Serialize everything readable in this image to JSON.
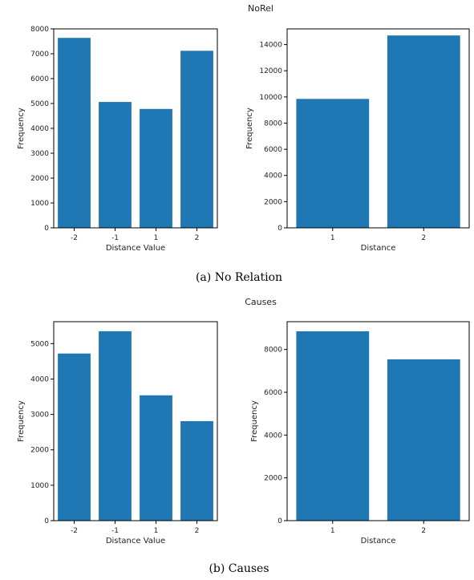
{
  "figure": {
    "panels": [
      {
        "suptitle": "NoRel",
        "caption": "(a) No Relation",
        "charts": [
          {
            "type": "bar",
            "categories": [
              "-2",
              "-1",
              "1",
              "2"
            ],
            "values": [
              7640,
              5060,
              4780,
              7120
            ],
            "xlabel": "Distance Value",
            "ylabel": "Frequency",
            "ylim": [
              0,
              8000
            ],
            "yticks": [
              0,
              1000,
              2000,
              3000,
              4000,
              5000,
              6000,
              7000,
              8000
            ],
            "color": "#1f77b4"
          },
          {
            "type": "bar",
            "categories": [
              "1",
              "2"
            ],
            "values": [
              9850,
              14700
            ],
            "xlabel": "Distance",
            "ylabel": "Frequency",
            "ylim": [
              0,
              15200
            ],
            "yticks": [
              0,
              2000,
              4000,
              6000,
              8000,
              10000,
              12000,
              14000
            ],
            "color": "#1f77b4"
          }
        ]
      },
      {
        "suptitle": "Causes",
        "caption": "(b) Causes",
        "charts": [
          {
            "type": "bar",
            "categories": [
              "-2",
              "-1",
              "1",
              "2"
            ],
            "values": [
              4720,
              5350,
              3540,
              2810
            ],
            "xlabel": "Distance Value",
            "ylabel": "Frequency",
            "ylim": [
              0,
              5620
            ],
            "yticks": [
              0,
              1000,
              2000,
              3000,
              4000,
              5000
            ],
            "color": "#1f77b4"
          },
          {
            "type": "bar",
            "categories": [
              "1",
              "2"
            ],
            "values": [
              8850,
              7540
            ],
            "xlabel": "Distance",
            "ylabel": "Frequency",
            "ylim": [
              0,
              9300
            ],
            "yticks": [
              0,
              2000,
              4000,
              6000,
              8000
            ],
            "color": "#1f77b4"
          }
        ]
      }
    ]
  },
  "chart_data": [
    {
      "type": "bar",
      "title": "NoRel",
      "categories": [
        "-2",
        "-1",
        "1",
        "2"
      ],
      "values": [
        7640,
        5060,
        4780,
        7120
      ],
      "xlabel": "Distance Value",
      "ylabel": "Frequency",
      "ylim": [
        0,
        8000
      ]
    },
    {
      "type": "bar",
      "title": "NoRel",
      "categories": [
        "1",
        "2"
      ],
      "values": [
        9850,
        14700
      ],
      "xlabel": "Distance",
      "ylabel": "Frequency",
      "ylim": [
        0,
        15200
      ]
    },
    {
      "type": "bar",
      "title": "Causes",
      "categories": [
        "-2",
        "-1",
        "1",
        "2"
      ],
      "values": [
        4720,
        5350,
        3540,
        2810
      ],
      "xlabel": "Distance Value",
      "ylabel": "Frequency",
      "ylim": [
        0,
        5620
      ]
    },
    {
      "type": "bar",
      "title": "Causes",
      "categories": [
        "1",
        "2"
      ],
      "values": [
        8850,
        7540
      ],
      "xlabel": "Distance",
      "ylabel": "Frequency",
      "ylim": [
        0,
        9300
      ]
    }
  ]
}
